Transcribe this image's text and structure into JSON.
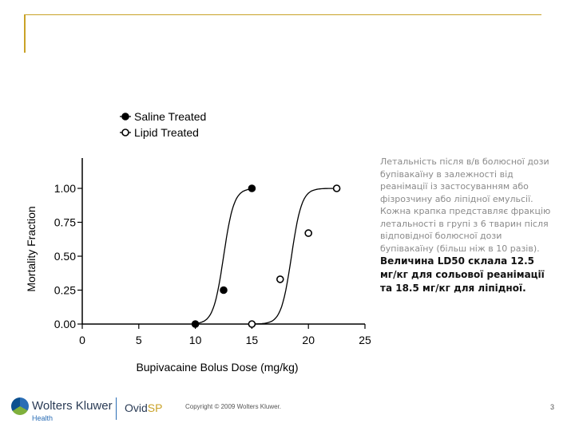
{
  "caption": {
    "normal": "Летальність після в/в болюсної дози бупівакаїну в залежності від реанімації із застосуванням або фізрозчину або ліпідної емульсії. Кожна крапка представляє фракцію летальності в групі з 6 тварин після відповідної болюсної дози бупівакаїну (більш ніж в 10 разів).",
    "bold": "Величина LD50 склала 12.5 мг/кг для сольової реанімації та 18.5 мг/кг для ліпідної."
  },
  "footer": {
    "brand": "Wolters Kluwer",
    "brand_sub": "Health",
    "product_a": "Ovid",
    "product_b": "SP",
    "copyright": "Copyright © 2009 Wolters Kluwer.",
    "page_number": "3"
  },
  "colors": {
    "accent": "#c9a227",
    "ink": "#000000"
  },
  "chart_data": {
    "type": "scatter",
    "xlabel": "Bupivacaine Bolus Dose (mg/kg)",
    "ylabel": "Mortality Fraction",
    "xlim": [
      0,
      25
    ],
    "ylim": [
      0,
      1
    ],
    "x_ticks": [
      "0",
      "5",
      "10",
      "15",
      "20",
      "25"
    ],
    "y_ticks": [
      "0.00",
      "0.25",
      "0.50",
      "0.75",
      "1.00"
    ],
    "legend_position": "top-left",
    "series": [
      {
        "name": "Saline Treated",
        "marker": "filled-circle",
        "x": [
          10,
          12.5,
          15
        ],
        "y": [
          0.0,
          0.25,
          1.0
        ],
        "fit_midpoint": 12.5
      },
      {
        "name": "Lipid Treated",
        "marker": "open-circle",
        "x": [
          15,
          17.5,
          20,
          22.5
        ],
        "y": [
          0.0,
          0.33,
          0.67,
          1.0
        ],
        "fit_midpoint": 18.5
      }
    ]
  }
}
